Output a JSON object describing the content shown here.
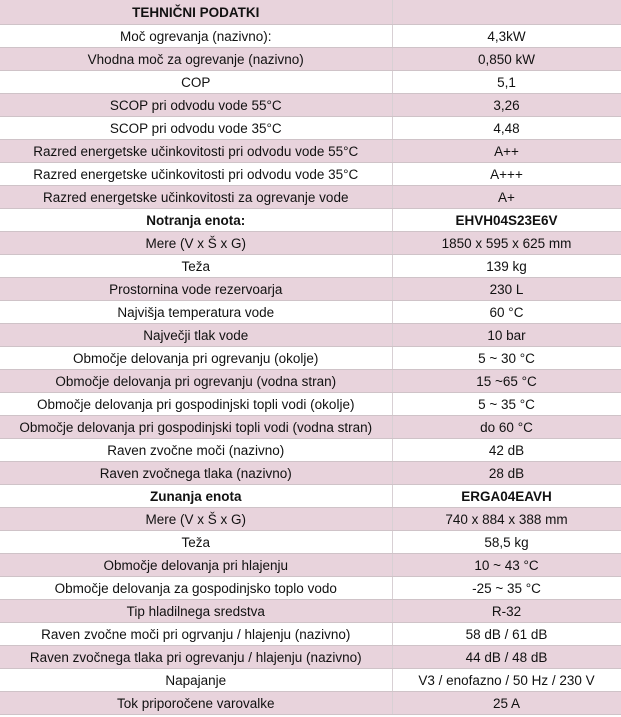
{
  "colors": {
    "stripe": "#e8d3dc",
    "alt": "#ffffff"
  },
  "rows": [
    {
      "label": "TEHNIČNI PODATKI",
      "value": "",
      "bold": true
    },
    {
      "label": "Moč ogrevanja (nazivno):",
      "value": "4,3kW"
    },
    {
      "label": "Vhodna moč za ogrevanje (nazivno)",
      "value": "0,850 kW"
    },
    {
      "label": "COP",
      "value": "5,1"
    },
    {
      "label": "SCOP pri odvodu vode 55°C",
      "value": "3,26"
    },
    {
      "label": "SCOP pri odvodu vode 35°C",
      "value": "4,48"
    },
    {
      "label": "Razred energetske učinkovitosti pri odvodu vode 55°C",
      "value": "A++"
    },
    {
      "label": "Razred energetske učinkovitosti pri odvodu vode 35°C",
      "value": "A+++"
    },
    {
      "label": "Razred energetske učinkovitosti za ogrevanje vode",
      "value": "A+"
    },
    {
      "label": "Notranja enota:",
      "value": "EHVH04S23E6V",
      "bold": true
    },
    {
      "label": "Mere (V x Š x G)",
      "value": "1850 x 595 x 625 mm"
    },
    {
      "label": "Teža",
      "value": "139 kg"
    },
    {
      "label": "Prostornina vode rezervoarja",
      "value": "230 L"
    },
    {
      "label": "Najvišja temperatura vode",
      "value": "60 °C"
    },
    {
      "label": "Največji tlak vode",
      "value": "10 bar"
    },
    {
      "label": "Območje delovanja pri ogrevanju (okolje)",
      "value": "5 ~ 30 °C"
    },
    {
      "label": "Območje delovanja pri ogrevanju (vodna stran)",
      "value": "15 ~65 °C"
    },
    {
      "label": "Območje delovanja pri gospodinjski topli vodi (okolje)",
      "value": "5 ~ 35 °C"
    },
    {
      "label": "Območje delovanja pri gospodinjski topli vodi (vodna stran)",
      "value": "do 60 °C"
    },
    {
      "label": "Raven zvočne moči (nazivno)",
      "value": "42 dB"
    },
    {
      "label": "Raven zvočnega tlaka (nazivno)",
      "value": "28 dB"
    },
    {
      "label": "Zunanja enota",
      "value": "ERGA04EAVH",
      "bold": true
    },
    {
      "label": "Mere (V x Š x G)",
      "value": "740 x 884 x 388 mm"
    },
    {
      "label": "Teža",
      "value": "58,5 kg"
    },
    {
      "label": "Območje delovanja pri hlajenju",
      "value": "10 ~ 43 °C"
    },
    {
      "label": "Območje delovanja za gospodinjsko toplo vodo",
      "value": "-25 ~ 35 °C"
    },
    {
      "label": "Tip hladilnega sredstva",
      "value": "R-32"
    },
    {
      "label": "Raven zvočne moči pri ogrvanju / hlajenju (nazivno)",
      "value": "58 dB / 61 dB"
    },
    {
      "label": "Raven zvočnega tlaka pri ogrevanju / hlajenju (nazivno)",
      "value": "44 dB / 48 dB"
    },
    {
      "label": "Napajanje",
      "value": "V3 / enofazno / 50 Hz / 230 V"
    },
    {
      "label": "Tok priporočene varovalke",
      "value": "25 A"
    }
  ]
}
